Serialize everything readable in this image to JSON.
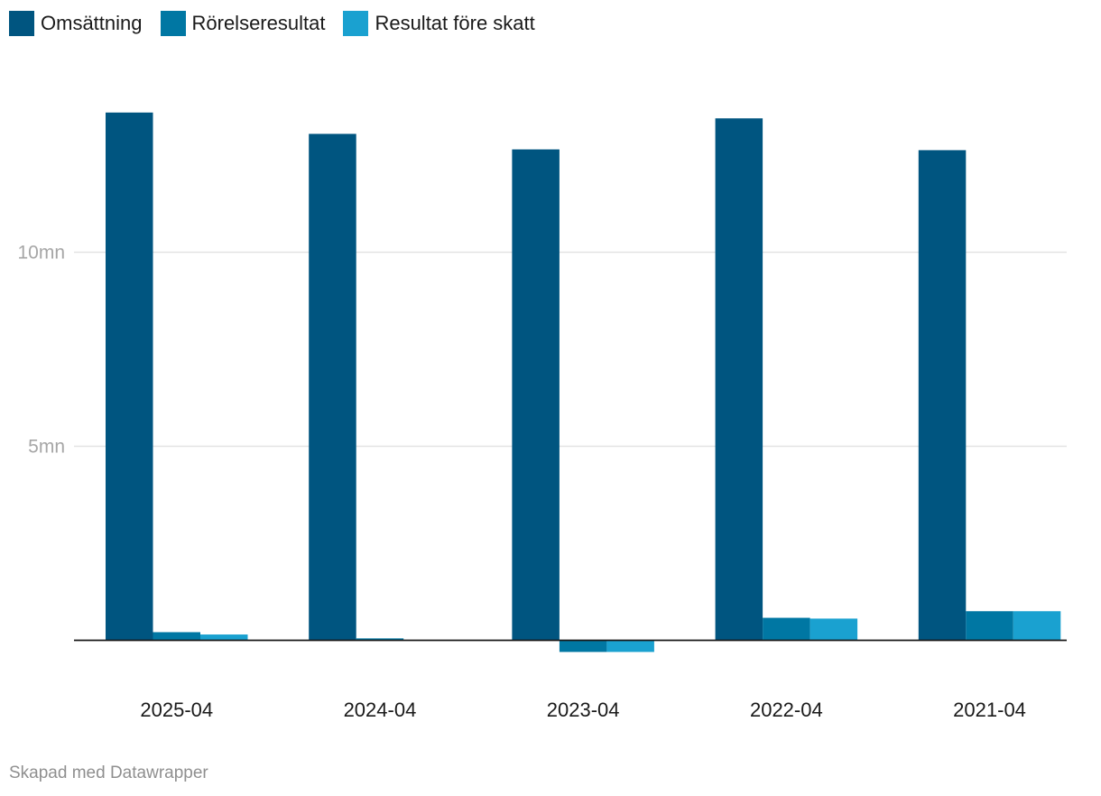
{
  "colors": {
    "series": [
      "#005580",
      "#0077a3",
      "#1aa1d0"
    ],
    "grid": "#e3e3e3",
    "baseline": "#1a1a1a"
  },
  "footer": "Skapad med Datawrapper",
  "chart_data": {
    "type": "bar",
    "categories": [
      "2025-04",
      "2024-04",
      "2023-04",
      "2022-04",
      "2021-04"
    ],
    "series": [
      {
        "name": "Omsättning",
        "values": [
          13.6,
          13.05,
          12.65,
          13.45,
          12.63
        ]
      },
      {
        "name": "Rörelseresultat",
        "values": [
          0.21,
          0.05,
          -0.3,
          0.58,
          0.75
        ]
      },
      {
        "name": "Resultat före skatt",
        "values": [
          0.15,
          0.0,
          -0.3,
          0.56,
          0.75
        ]
      }
    ],
    "yticks": [
      {
        "value": 5,
        "label": "5mn"
      },
      {
        "value": 10,
        "label": "10mn"
      }
    ],
    "ylim": [
      -0.5,
      14.5
    ],
    "grid": true,
    "legend_position": "top-left"
  }
}
